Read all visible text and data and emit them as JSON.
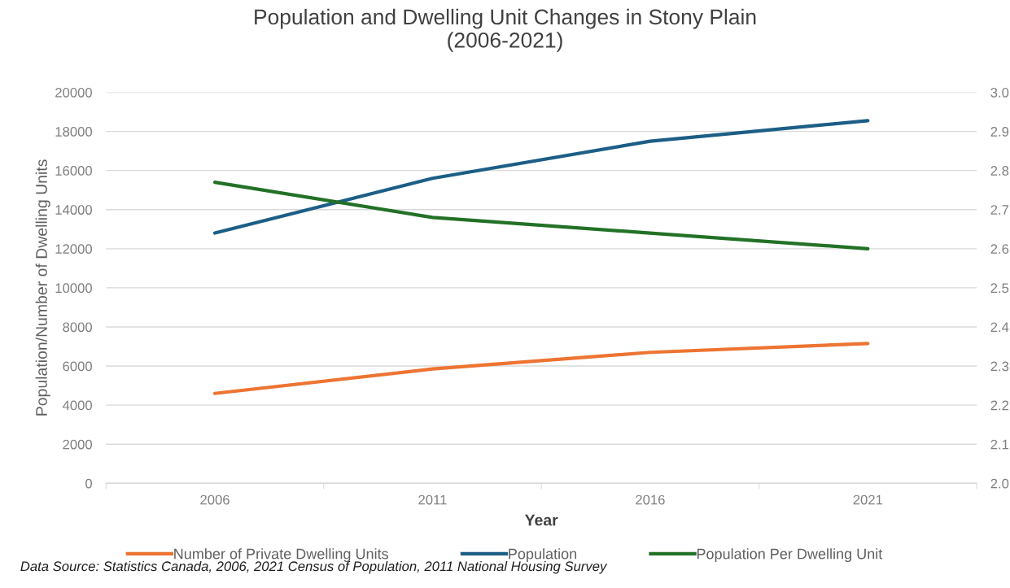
{
  "chart_data": {
    "type": "line",
    "title": "Population and Dwelling Unit Changes in Stony Plain\n(2006-2021)",
    "xlabel": "Year",
    "ylabel": "Population/Number of Dwelling Units",
    "categories": [
      "2006",
      "2011",
      "2016",
      "2021"
    ],
    "series": [
      {
        "name": "Number of Private Dwelling Units",
        "color": "#ed7432",
        "values": [
          4600,
          5850,
          6700,
          7150
        ]
      },
      {
        "name": "Population",
        "color": "#1c5e86",
        "values": [
          12800,
          15600,
          17500,
          18550
        ]
      },
      {
        "name": "Population Per Dwelling Unit",
        "color": "#237126",
        "values": [
          2.77,
          2.68,
          2.64,
          2.6
        ],
        "axis": "y2"
      }
    ],
    "ylim": [
      0,
      20000
    ],
    "yticks": [
      0,
      2000,
      4000,
      6000,
      8000,
      10000,
      12000,
      14000,
      16000,
      18000,
      20000
    ],
    "y2lim": [
      2.0,
      3.0
    ],
    "y2ticks": [
      {
        "value": 2.0,
        "label": "2.0"
      },
      {
        "value": 2.1,
        "label": "2.1"
      },
      {
        "value": 2.2,
        "label": "2.2"
      },
      {
        "value": 2.3,
        "label": "2.3"
      },
      {
        "value": 2.4,
        "label": "2.4"
      },
      {
        "value": 2.5,
        "label": "2.5"
      },
      {
        "value": 2.6,
        "label": "2.6"
      },
      {
        "value": 2.7,
        "label": "2.7"
      },
      {
        "value": 2.8,
        "label": "2.8"
      },
      {
        "value": 2.9,
        "label": "2.9"
      },
      {
        "value": 3.0,
        "label": "3.0"
      }
    ],
    "grid": "y",
    "legend": "bottom",
    "marker": "none",
    "line_style": "solid",
    "annotations": [
      "Data Source: Statistics Canada, 2006, 2021 Census of Population, 2011 National Housing Survey"
    ]
  }
}
